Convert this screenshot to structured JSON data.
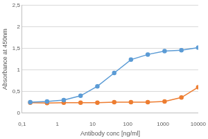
{
  "chart_data": {
    "type": "line",
    "x_label": "Antibody conc [ng/ml]",
    "y_label": "Absorbance at 450nm",
    "x": [
      0.17,
      0.51,
      1.52,
      4.57,
      13.7,
      41.2,
      123,
      370,
      1111,
      3333,
      10000
    ],
    "series": [
      {
        "color": "#5b9bd5",
        "values": [
          0.25,
          0.27,
          0.3,
          0.4,
          0.62,
          0.93,
          1.24,
          1.36,
          1.44,
          1.46,
          1.52
        ]
      },
      {
        "color": "#ed7d31",
        "values": [
          0.24,
          0.23,
          0.24,
          0.24,
          0.24,
          0.25,
          0.25,
          0.25,
          0.27,
          0.36,
          0.6
        ]
      }
    ],
    "xlim": [
      0.1,
      10000
    ],
    "xticks": [
      {
        "value": 0.1,
        "label": "0,1"
      },
      1,
      10,
      100,
      1000,
      10000
    ],
    "ylim": [
      0,
      2.5
    ],
    "yticks": [
      0,
      {
        "value": 0.5,
        "label": "0,5"
      },
      1,
      {
        "value": 1.5,
        "label": "1,5"
      },
      2,
      {
        "value": 2.5,
        "label": "2,5"
      }
    ],
    "log": "x",
    "grid": true,
    "marker": "circle"
  }
}
